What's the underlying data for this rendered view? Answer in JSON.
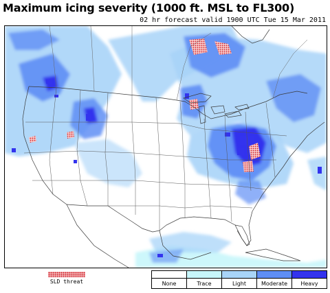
{
  "title": "Maximum icing severity (1000 ft. MSL to FL300)",
  "subtitle": "02 hr forecast valid 1900 UTC Tue 15 Mar 2011",
  "map": {
    "projection": "North America regional",
    "background": "white",
    "boundaries": [
      "country",
      "state"
    ]
  },
  "sld": {
    "label": "SLD threat",
    "color": "#d0202a"
  },
  "legend": {
    "items": [
      {
        "label": "None",
        "color": "#ffffff"
      },
      {
        "label": "Trace",
        "color": "#c8f6fb"
      },
      {
        "label": "Light",
        "color": "#a8d4f8"
      },
      {
        "label": "Moderate",
        "color": "#5f8ef5"
      },
      {
        "label": "Heavy",
        "color": "#3333ee"
      }
    ]
  }
}
